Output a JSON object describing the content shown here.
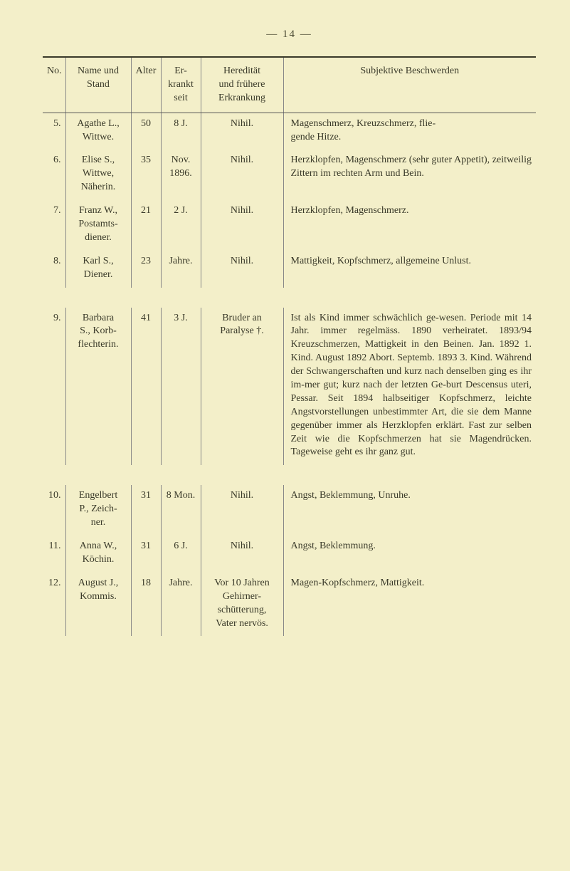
{
  "page_number": "—  14  —",
  "headers": {
    "no": "No.",
    "name": "Name und Stand",
    "alter": "Alter",
    "erkrankt": "Er-\nkrankt\nseit",
    "hereditaet": "Heredität\nund frühere\nErkrankung",
    "subjektiv": "Subjektive Beschwerden"
  },
  "rows": [
    {
      "no": "5.",
      "name": "Agathe L.,\nWittwe.",
      "alter": "50",
      "erkrankt": "8 J.",
      "hereditaet": "Nihil.",
      "subjektiv": "Magenschmerz, Kreuzschmerz, flie-\ngende Hitze."
    },
    {
      "no": "6.",
      "name": "Elise S.,\nWittwe,\nNäherin.",
      "alter": "35",
      "erkrankt": "Nov.\n1896.",
      "hereditaet": "Nihil.",
      "subjektiv": "Herzklopfen, Magenschmerz (sehr guter Appetit), zeitweilig Zittern im rechten Arm und Bein."
    },
    {
      "no": "7.",
      "name": "Franz W.,\nPostamts-\ndiener.",
      "alter": "21",
      "erkrankt": "2 J.",
      "hereditaet": "Nihil.",
      "subjektiv": "Herzklopfen, Magenschmerz."
    },
    {
      "no": "8.",
      "name": "Karl S.,\nDiener.",
      "alter": "23",
      "erkrankt": "Jahre.",
      "hereditaet": "Nihil.",
      "subjektiv": "Mattigkeit, Kopfschmerz, allgemeine Unlust."
    },
    {
      "no": "9.",
      "name": "Barbara\nS., Korb-\nflechterin.",
      "alter": "41",
      "erkrankt": "3 J.",
      "hereditaet": "Bruder an\nParalyse †.",
      "subjektiv": "Ist als Kind immer schwächlich ge-wesen. Periode mit 14 Jahr. immer regelmäss. 1890 verheiratet. 1893/94 Kreuzschmerzen, Mattigkeit in den Beinen. Jan. 1892 1. Kind. August 1892 Abort. Septemb. 1893 3. Kind. Während der Schwangerschaften und kurz nach denselben ging es ihr im-mer gut; kurz nach der letzten Ge-burt Descensus uteri, Pessar. Seit 1894 halbseitiger Kopfschmerz, leichte Angstvorstellungen unbestimmter Art, die sie dem Manne gegenüber immer als Herzklopfen erklärt. Fast zur selben Zeit wie die Kopfschmerzen hat sie Magendrücken. Tageweise geht es ihr ganz gut."
    },
    {
      "no": "10.",
      "name": "Engelbert\nP., Zeich-\nner.",
      "alter": "31",
      "erkrankt": "8 Mon.",
      "hereditaet": "Nihil.",
      "subjektiv": "Angst, Beklemmung, Unruhe."
    },
    {
      "no": "11.",
      "name": "Anna W.,\nKöchin.",
      "alter": "31",
      "erkrankt": "6 J.",
      "hereditaet": "Nihil.",
      "subjektiv": "Angst, Beklemmung."
    },
    {
      "no": "12.",
      "name": "August J.,\nKommis.",
      "alter": "18",
      "erkrankt": "Jahre.",
      "hereditaet": "Vor 10 Jahren\nGehirner-\nschütterung,\nVater nervös.",
      "subjektiv": "Magen-Kopfschmerz, Mattigkeit."
    }
  ]
}
